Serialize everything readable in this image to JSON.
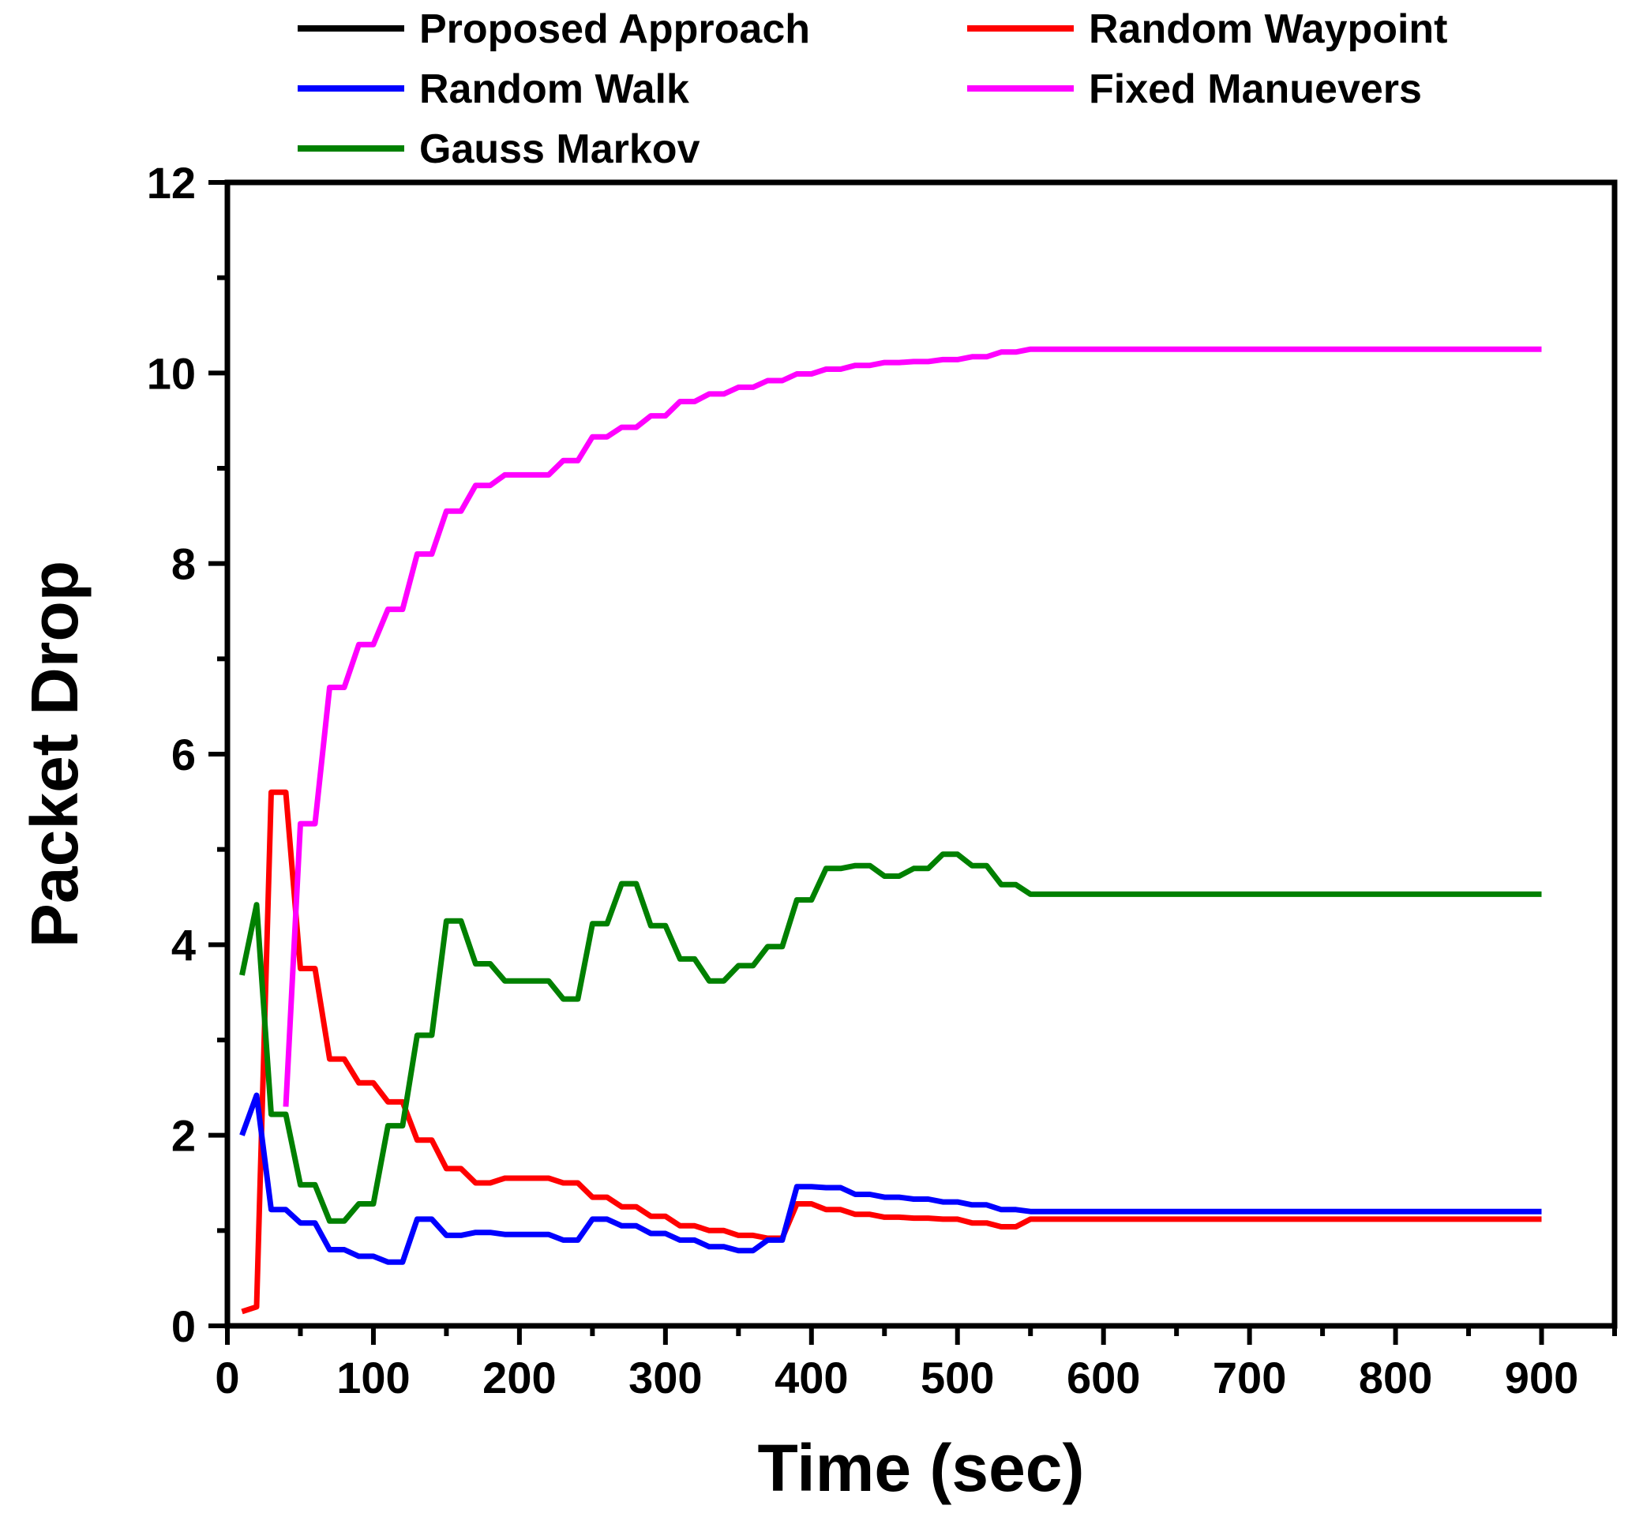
{
  "chart_data": {
    "type": "line",
    "title": "",
    "xlabel": "Time (sec)",
    "ylabel": "Packet Drop",
    "xlim": [
      0,
      950
    ],
    "ylim": [
      0,
      12
    ],
    "xticks": [
      0,
      100,
      200,
      300,
      400,
      500,
      600,
      700,
      800,
      900
    ],
    "yticks": [
      0,
      2,
      4,
      6,
      8,
      10,
      12
    ],
    "grid": false,
    "legend_position": "top",
    "series": [
      {
        "name": "Proposed Approach",
        "color": "#000000",
        "x": [
          10,
          900
        ],
        "y": [
          0,
          0
        ]
      },
      {
        "name": "Random Waypoint",
        "color": "#ff0000",
        "x": [
          10,
          20,
          30,
          40,
          50,
          60,
          70,
          80,
          90,
          100,
          110,
          120,
          130,
          140,
          150,
          160,
          170,
          180,
          190,
          200,
          210,
          220,
          230,
          240,
          250,
          260,
          270,
          280,
          290,
          300,
          310,
          320,
          330,
          340,
          350,
          360,
          370,
          380,
          390,
          400,
          410,
          420,
          430,
          440,
          450,
          460,
          470,
          480,
          490,
          500,
          510,
          520,
          530,
          540,
          550,
          900
        ],
        "y": [
          0.15,
          0.2,
          5.6,
          5.6,
          3.75,
          3.75,
          2.8,
          2.8,
          2.55,
          2.55,
          2.35,
          2.35,
          1.95,
          1.95,
          1.65,
          1.65,
          1.5,
          1.5,
          1.55,
          1.55,
          1.55,
          1.55,
          1.5,
          1.5,
          1.35,
          1.35,
          1.25,
          1.25,
          1.15,
          1.15,
          1.05,
          1.05,
          1.0,
          1.0,
          0.95,
          0.95,
          0.92,
          0.92,
          1.28,
          1.28,
          1.22,
          1.22,
          1.17,
          1.17,
          1.14,
          1.14,
          1.13,
          1.13,
          1.12,
          1.12,
          1.08,
          1.08,
          1.04,
          1.04,
          1.12,
          1.12
        ]
      },
      {
        "name": "Random Walk",
        "color": "#0000ff",
        "x": [
          10,
          20,
          30,
          40,
          50,
          60,
          70,
          80,
          90,
          100,
          110,
          120,
          130,
          140,
          150,
          160,
          170,
          180,
          190,
          200,
          210,
          220,
          230,
          240,
          250,
          260,
          270,
          280,
          290,
          300,
          310,
          320,
          330,
          340,
          350,
          360,
          370,
          380,
          390,
          400,
          410,
          420,
          430,
          440,
          450,
          460,
          470,
          480,
          490,
          500,
          510,
          520,
          530,
          540,
          550,
          900
        ],
        "y": [
          2.0,
          2.42,
          1.22,
          1.22,
          1.08,
          1.08,
          0.8,
          0.8,
          0.73,
          0.73,
          0.67,
          0.67,
          1.12,
          1.12,
          0.95,
          0.95,
          0.98,
          0.98,
          0.96,
          0.96,
          0.96,
          0.96,
          0.9,
          0.9,
          1.12,
          1.12,
          1.05,
          1.05,
          0.97,
          0.97,
          0.9,
          0.9,
          0.83,
          0.83,
          0.79,
          0.79,
          0.9,
          0.9,
          1.46,
          1.46,
          1.45,
          1.45,
          1.38,
          1.38,
          1.35,
          1.35,
          1.33,
          1.33,
          1.3,
          1.3,
          1.27,
          1.27,
          1.22,
          1.22,
          1.2,
          1.2
        ]
      },
      {
        "name": "Fixed Manuevers",
        "color": "#ff00ff",
        "x": [
          40,
          50,
          60,
          70,
          80,
          90,
          100,
          110,
          120,
          130,
          140,
          150,
          160,
          170,
          180,
          190,
          200,
          210,
          220,
          230,
          240,
          250,
          260,
          270,
          280,
          290,
          300,
          310,
          320,
          330,
          340,
          350,
          360,
          370,
          380,
          390,
          400,
          410,
          420,
          430,
          440,
          450,
          460,
          470,
          480,
          490,
          500,
          510,
          520,
          530,
          540,
          550,
          900
        ],
        "y": [
          2.3,
          5.27,
          5.27,
          6.7,
          6.7,
          7.15,
          7.15,
          7.52,
          7.52,
          8.1,
          8.1,
          8.55,
          8.55,
          8.82,
          8.82,
          8.93,
          8.93,
          8.93,
          8.93,
          9.08,
          9.08,
          9.33,
          9.33,
          9.43,
          9.43,
          9.55,
          9.55,
          9.7,
          9.7,
          9.78,
          9.78,
          9.85,
          9.85,
          9.92,
          9.92,
          9.99,
          9.99,
          10.04,
          10.04,
          10.08,
          10.08,
          10.11,
          10.11,
          10.12,
          10.12,
          10.14,
          10.14,
          10.17,
          10.17,
          10.22,
          10.22,
          10.25,
          10.25
        ]
      },
      {
        "name": "Gauss Markov",
        "color": "#008000",
        "x": [
          10,
          20,
          30,
          40,
          50,
          60,
          70,
          80,
          90,
          100,
          110,
          120,
          130,
          140,
          150,
          160,
          170,
          180,
          190,
          200,
          210,
          220,
          230,
          240,
          250,
          260,
          270,
          280,
          290,
          300,
          310,
          320,
          330,
          340,
          350,
          360,
          370,
          380,
          390,
          400,
          410,
          420,
          430,
          440,
          450,
          460,
          470,
          480,
          490,
          500,
          510,
          520,
          530,
          540,
          550,
          900
        ],
        "y": [
          3.68,
          4.42,
          2.22,
          2.22,
          1.48,
          1.48,
          1.1,
          1.1,
          1.28,
          1.28,
          2.1,
          2.1,
          3.05,
          3.05,
          4.25,
          4.25,
          3.8,
          3.8,
          3.62,
          3.62,
          3.62,
          3.62,
          3.43,
          3.43,
          4.22,
          4.22,
          4.64,
          4.64,
          4.2,
          4.2,
          3.85,
          3.85,
          3.62,
          3.62,
          3.78,
          3.78,
          3.98,
          3.98,
          4.47,
          4.47,
          4.8,
          4.8,
          4.83,
          4.83,
          4.72,
          4.72,
          4.8,
          4.8,
          4.95,
          4.95,
          4.83,
          4.83,
          4.63,
          4.63,
          4.53,
          4.53
        ]
      }
    ]
  }
}
